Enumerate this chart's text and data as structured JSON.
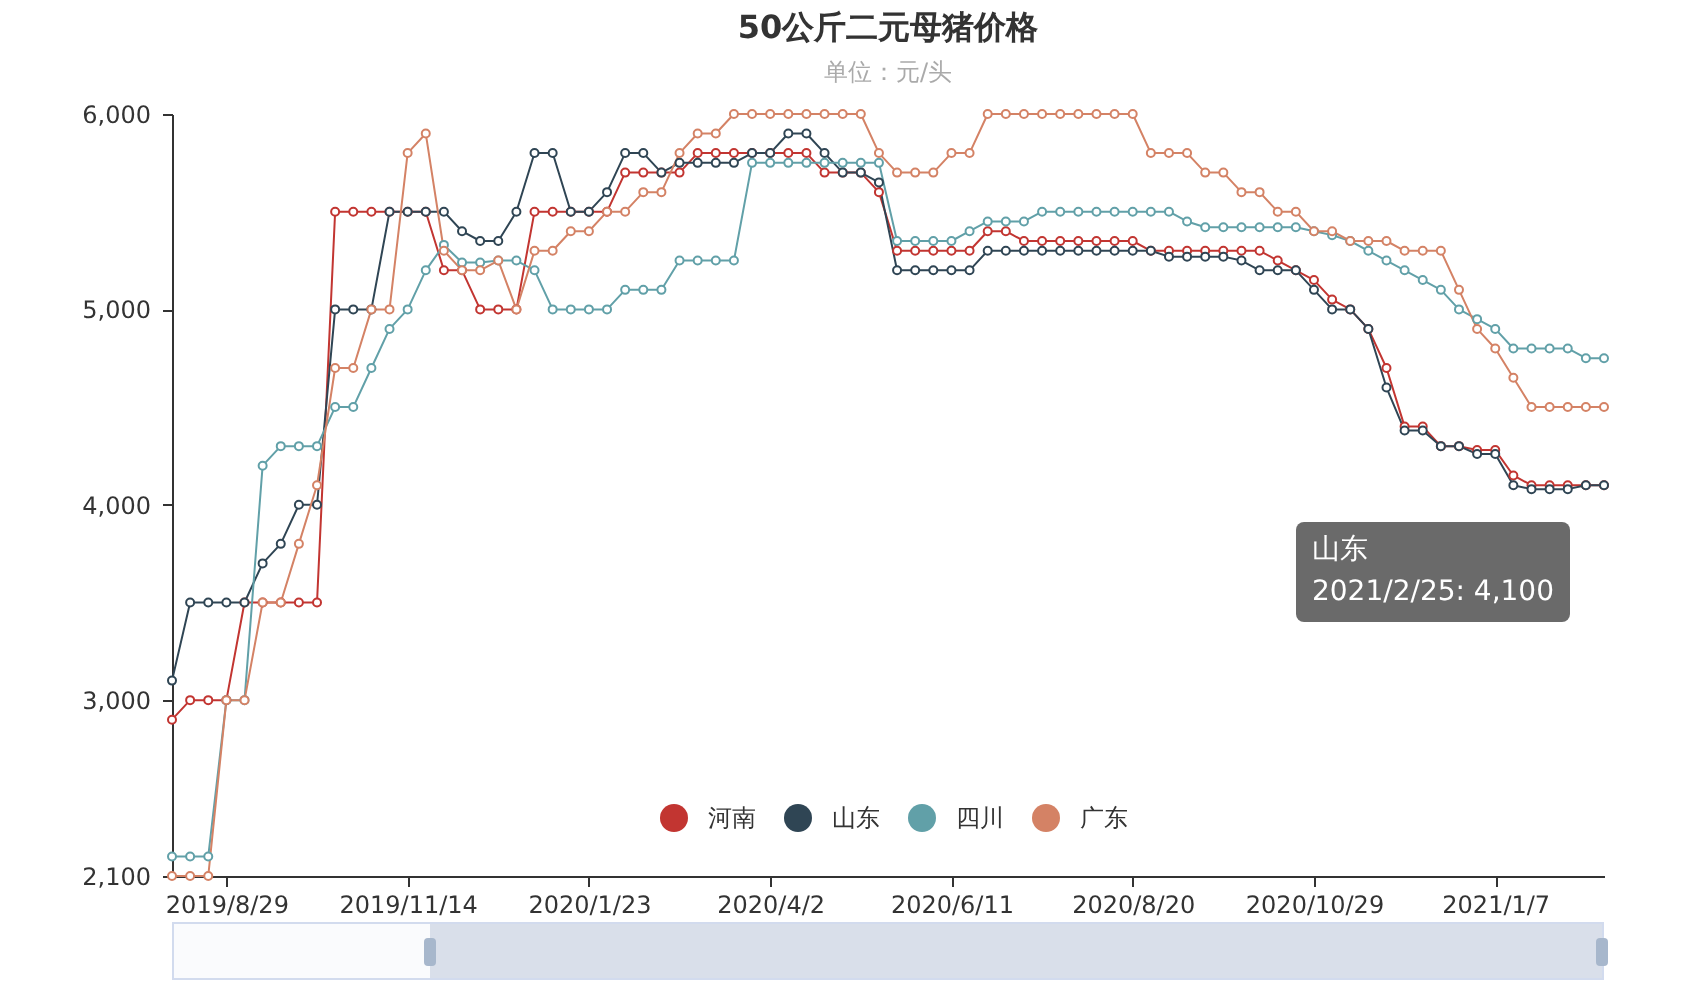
{
  "chart_data": {
    "type": "line",
    "title": "50公斤二元母猪价格",
    "subtitle": "单位：元/头",
    "categories": [
      null,
      null,
      null,
      "2019/8/29",
      null,
      null,
      null,
      null,
      null,
      null,
      null,
      null,
      null,
      "2019/11/14",
      null,
      null,
      null,
      null,
      null,
      null,
      null,
      null,
      null,
      "2020/1/23",
      null,
      null,
      null,
      null,
      null,
      null,
      null,
      null,
      null,
      "2020/4/2",
      null,
      null,
      null,
      null,
      null,
      null,
      null,
      null,
      null,
      "2020/6/11",
      null,
      null,
      null,
      null,
      null,
      null,
      null,
      null,
      null,
      "2020/8/20",
      null,
      null,
      null,
      null,
      null,
      null,
      null,
      null,
      null,
      "2020/10/29",
      null,
      null,
      null,
      null,
      null,
      null,
      null,
      null,
      null,
      "2021/1/7",
      null,
      null,
      null,
      null,
      null,
      null
    ],
    "series": [
      {
        "name": "河南",
        "color": "#c23531",
        "values": [
          2900,
          3000,
          3000,
          3000,
          3500,
          3500,
          3500,
          3500,
          3500,
          5500,
          5500,
          5500,
          5500,
          5500,
          5500,
          5200,
          5200,
          5000,
          5000,
          5000,
          5500,
          5500,
          5500,
          5500,
          5500,
          5700,
          5700,
          5700,
          5700,
          5800,
          5800,
          5800,
          5800,
          5800,
          5800,
          5800,
          5700,
          5700,
          5700,
          5600,
          5300,
          5300,
          5300,
          5300,
          5300,
          5400,
          5400,
          5350,
          5350,
          5350,
          5350,
          5350,
          5350,
          5350,
          5300,
          5300,
          5300,
          5300,
          5300,
          5300,
          5300,
          5250,
          5200,
          5150,
          5050,
          5000,
          4900,
          4700,
          4400,
          4400,
          4300,
          4300,
          4280,
          4280,
          4150,
          4100,
          4100,
          4100,
          4100,
          4100
        ]
      },
      {
        "name": "山东",
        "color": "#2f4554",
        "values": [
          3100,
          3500,
          3500,
          3500,
          3500,
          3700,
          3800,
          4000,
          4000,
          5000,
          5000,
          5000,
          5500,
          5500,
          5500,
          5500,
          5400,
          5350,
          5350,
          5500,
          5800,
          5800,
          5500,
          5500,
          5600,
          5800,
          5800,
          5700,
          5750,
          5750,
          5750,
          5750,
          5800,
          5800,
          5900,
          5900,
          5800,
          5700,
          5700,
          5650,
          5200,
          5200,
          5200,
          5200,
          5200,
          5300,
          5300,
          5300,
          5300,
          5300,
          5300,
          5300,
          5300,
          5300,
          5300,
          5270,
          5270,
          5270,
          5270,
          5250,
          5200,
          5200,
          5200,
          5100,
          5000,
          5000,
          4900,
          4600,
          4380,
          4380,
          4300,
          4300,
          4260,
          4260,
          4100,
          4080,
          4080,
          4080,
          4100,
          4100
        ]
      },
      {
        "name": "四川",
        "color": "#61a0a8",
        "values": [
          2200,
          2200,
          2200,
          3000,
          3000,
          4200,
          4300,
          4300,
          4300,
          4500,
          4500,
          4700,
          4900,
          5000,
          5200,
          5330,
          5240,
          5240,
          5250,
          5250,
          5200,
          5000,
          5000,
          5000,
          5000,
          5100,
          5100,
          5100,
          5250,
          5250,
          5250,
          5250,
          5750,
          5750,
          5750,
          5750,
          5750,
          5750,
          5750,
          5750,
          5350,
          5350,
          5350,
          5350,
          5400,
          5450,
          5450,
          5450,
          5500,
          5500,
          5500,
          5500,
          5500,
          5500,
          5500,
          5500,
          5450,
          5420,
          5420,
          5420,
          5420,
          5420,
          5420,
          5400,
          5380,
          5350,
          5300,
          5250,
          5200,
          5150,
          5100,
          5000,
          4950,
          4900,
          4800,
          4800,
          4800,
          4800,
          4750,
          4750
        ]
      },
      {
        "name": "广东",
        "color": "#d48265",
        "values": [
          2100,
          2100,
          2100,
          3000,
          3000,
          3500,
          3500,
          3800,
          4100,
          4700,
          4700,
          5000,
          5000,
          5800,
          5900,
          5300,
          5200,
          5200,
          5250,
          5000,
          5300,
          5300,
          5400,
          5400,
          5500,
          5500,
          5600,
          5600,
          5800,
          5900,
          5900,
          6000,
          6000,
          6000,
          6000,
          6000,
          6000,
          6000,
          6000,
          5800,
          5700,
          5700,
          5700,
          5800,
          5800,
          6000,
          6000,
          6000,
          6000,
          6000,
          6000,
          6000,
          6000,
          6000,
          5800,
          5800,
          5800,
          5700,
          5700,
          5600,
          5600,
          5500,
          5500,
          5400,
          5400,
          5350,
          5350,
          5350,
          5300,
          5300,
          5300,
          5100,
          4900,
          4800,
          4650,
          4500,
          4500,
          4500,
          4500,
          4500
        ]
      }
    ],
    "ylim": [
      2100,
      6000
    ],
    "yticks": [
      {
        "value": 2100,
        "label": "2,100"
      },
      {
        "value": 3000,
        "label": "3,000"
      },
      {
        "value": 4000,
        "label": "4,000"
      },
      {
        "value": 5000,
        "label": "5,000"
      },
      {
        "value": 6000,
        "label": "6,000"
      }
    ],
    "legend": "bottom",
    "marker": "circle",
    "annotations": [
      "山东\n2021/2/25: 4,100"
    ]
  }
}
